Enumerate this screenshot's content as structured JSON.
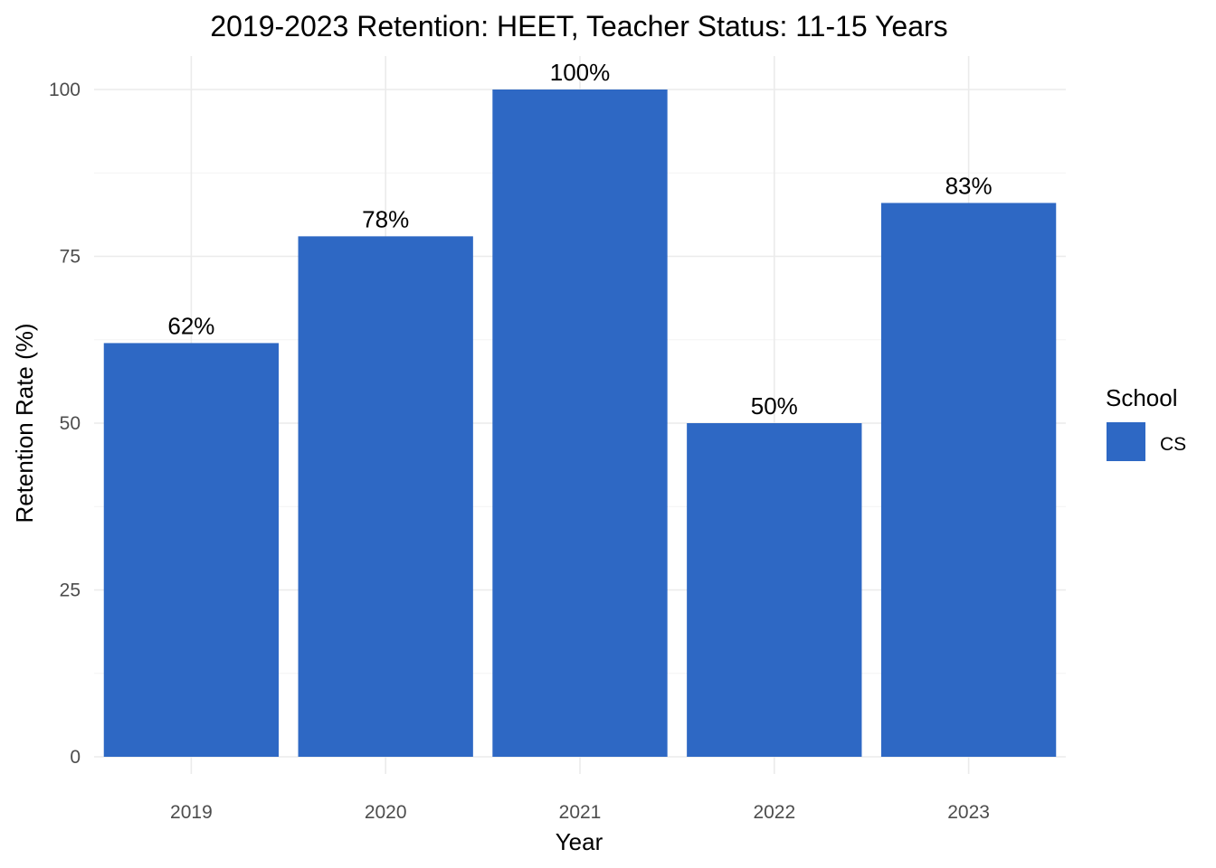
{
  "chart_data": {
    "type": "bar",
    "title": "2019-2023 Retention: HEET, Teacher Status: 11-15 Years",
    "xlabel": "Year",
    "ylabel": "Retention Rate (%)",
    "categories": [
      "2019",
      "2020",
      "2021",
      "2022",
      "2023"
    ],
    "series": [
      {
        "name": "CS",
        "values": [
          62,
          78,
          100,
          50,
          83
        ],
        "labels": [
          "62%",
          "78%",
          "100%",
          "50%",
          "83%"
        ],
        "color": "#2e68c4"
      }
    ],
    "ylim": [
      0,
      105
    ],
    "yticks": [
      0,
      25,
      50,
      75,
      100
    ],
    "ytick_labels": [
      "0",
      "25",
      "50",
      "75",
      "100"
    ],
    "grid": true,
    "legend": {
      "title": "School",
      "placement": "right"
    }
  }
}
